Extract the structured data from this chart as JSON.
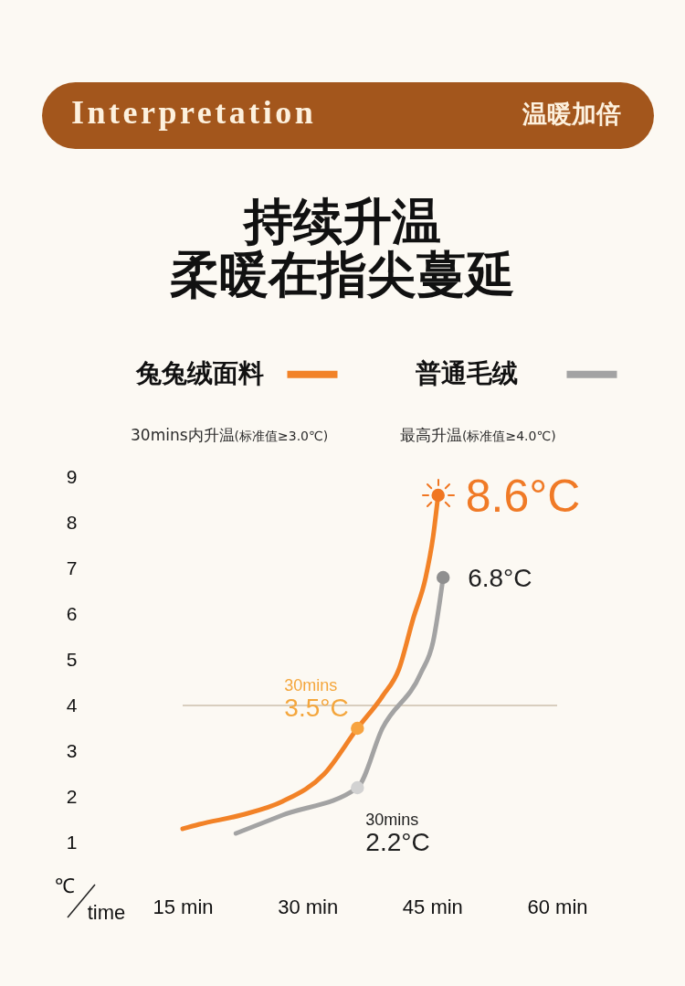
{
  "chart_data": {
    "type": "line",
    "title": "持续升温",
    "subtitle": "柔暖在指尖蔓延",
    "xlabel": "time",
    "ylabel": "℃",
    "annotations": [
      "Interpretation",
      "温暖加倍",
      "30mins内升温(标准值≥3.0℃)",
      "最高升温(标准值≥4.0℃)",
      {
        "text": "30mins",
        "x": 36,
        "y": 3.5
      },
      {
        "text": "30mins",
        "x": 36,
        "y": 2.2
      }
    ],
    "series": [
      {
        "name": "兔兔绒面料",
        "color": "#f28227",
        "x": [
          15,
          17,
          22,
          27,
          32,
          36,
          39,
          41,
          42.7,
          44.2,
          45.1,
          45.7
        ],
        "values": [
          1.3,
          1.4,
          1.6,
          1.9,
          2.5,
          3.5,
          4.2,
          4.8,
          5.9,
          6.8,
          7.7,
          8.6
        ]
      },
      {
        "name": "普通毛绒",
        "color": "#a3a3a3",
        "x": [
          21.4,
          27,
          36,
          39,
          43.6,
          45.1,
          46.3
        ],
        "values": [
          1.2,
          1.6,
          2.2,
          3.5,
          4.7,
          5.4,
          6.8
        ]
      },
      {
        "type": "scatter",
        "marker": "circle",
        "colors": [
          "#f7a33f",
          "#f07622"
        ],
        "x": [
          36,
          45.7
        ],
        "values": [
          3.5,
          8.6
        ],
        "value_labels": [
          "3.5°C",
          "8.6°C"
        ]
      },
      {
        "type": "scatter",
        "marker": "circle",
        "colors": [
          "#d2d2d2",
          "#8f8f8f"
        ],
        "x": [
          36,
          46.3
        ],
        "values": [
          2.2,
          6.8
        ],
        "value_labels": [
          "2.2°C",
          "6.8°C"
        ]
      }
    ],
    "xlim": [
      15,
      60
    ],
    "xticks": [
      {
        "value": 15,
        "label": "15 min"
      },
      {
        "value": 30,
        "label": "30 min"
      },
      {
        "value": 45,
        "label": "45 min"
      },
      {
        "value": 60,
        "label": "60 min"
      }
    ],
    "ylim": [
      1,
      9
    ],
    "yticks": [
      1,
      2,
      3,
      4,
      5,
      6,
      7,
      8,
      9
    ],
    "legend": "top",
    "ref_lines": [
      {
        "axis": "y",
        "value": 4,
        "color": "#d8cebe"
      }
    ]
  }
}
